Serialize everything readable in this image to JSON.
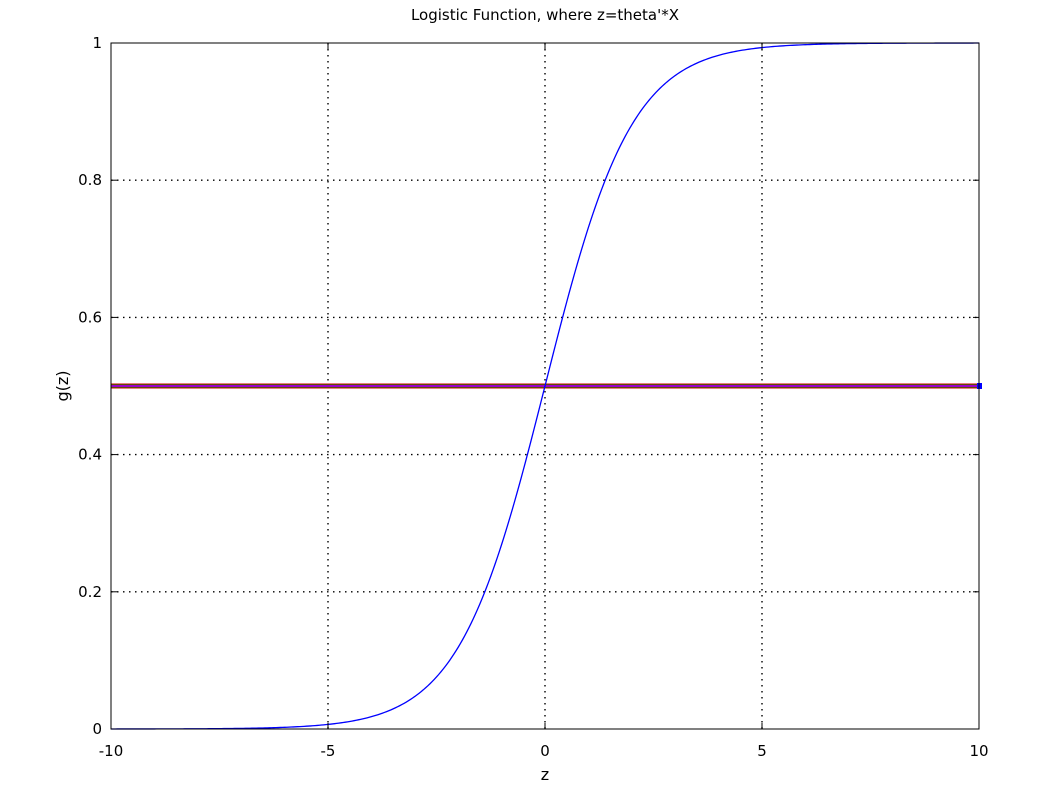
{
  "chart_data": {
    "type": "line",
    "title": "Logistic Function, where z=theta'*X",
    "xlabel": "z",
    "ylabel": "g(z)",
    "xlim": [
      -10,
      10
    ],
    "ylim": [
      0,
      1
    ],
    "x_ticks": [
      -10,
      -5,
      0,
      5,
      10
    ],
    "x_tick_labels": [
      "-10",
      "-5",
      "0",
      "5",
      "10"
    ],
    "y_ticks": [
      0,
      0.2,
      0.4,
      0.6,
      0.8,
      1
    ],
    "y_tick_labels": [
      "0",
      "0.2",
      "0.4",
      "0.6",
      "0.8",
      "1"
    ],
    "grid": true,
    "grid_style": "dotted",
    "legend": "none",
    "series": [
      {
        "function": "1/(1+exp(-z))",
        "color": "#0000ff",
        "x": [
          -10,
          -9,
          -8,
          -7,
          -6,
          -5,
          -4.5,
          -4,
          -3.5,
          -3,
          -2.5,
          -2,
          -1.5,
          -1,
          -0.5,
          0,
          0.5,
          1,
          1.5,
          2,
          2.5,
          3,
          3.5,
          4,
          4.5,
          5,
          6,
          7,
          8,
          9,
          10
        ],
        "values": [
          4.54e-05,
          0.0001234,
          0.0003354,
          0.000911,
          0.002473,
          0.006693,
          0.01099,
          0.01799,
          0.02931,
          0.04743,
          0.07586,
          0.1192,
          0.1824,
          0.2689,
          0.3775,
          0.5,
          0.6225,
          0.7311,
          0.8176,
          0.8808,
          0.9241,
          0.9526,
          0.9707,
          0.982,
          0.989,
          0.9933,
          0.9975,
          0.9991,
          0.9997,
          0.9999,
          1.0
        ]
      },
      {
        "color": "#cc0000",
        "x": [
          -10,
          10
        ],
        "values": [
          0.5,
          0.5
        ]
      },
      {
        "color": "#009900",
        "x": [
          -10,
          10
        ],
        "values": [
          0.5,
          0.5
        ]
      },
      {
        "color": "#9900cc",
        "x": [
          -10,
          10
        ],
        "values": [
          0.5,
          0.5
        ]
      }
    ]
  }
}
